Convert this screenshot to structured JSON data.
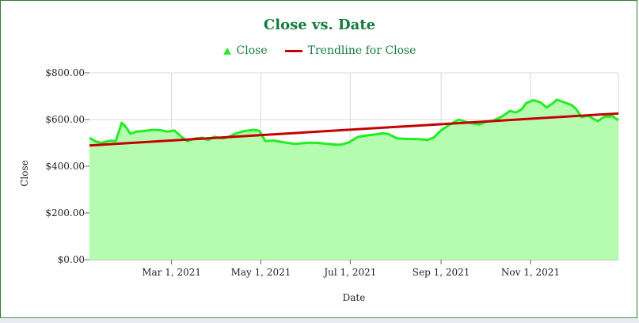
{
  "chart_data": {
    "type": "line",
    "title": "Close vs. Date",
    "xlabel": "Date",
    "ylabel": "Close",
    "legend": {
      "placement": "top-center",
      "entries": [
        "Close",
        "Trendline for Close"
      ]
    },
    "grid": true,
    "x_range": [
      "2021-01-04",
      "2021-12-31"
    ],
    "ylim": [
      0,
      800
    ],
    "y_ticks": [
      {
        "value": 0,
        "label": "$0.00"
      },
      {
        "value": 200,
        "label": "$200.00"
      },
      {
        "value": 400,
        "label": "$400.00"
      },
      {
        "value": 600,
        "label": "$600.00"
      },
      {
        "value": 800,
        "label": "$800.00"
      }
    ],
    "x_ticks": [
      {
        "value": "2021-03-01",
        "label": "Mar 1, 2021"
      },
      {
        "value": "2021-05-01",
        "label": "May 1, 2021"
      },
      {
        "value": "2021-07-01",
        "label": "Jul 1, 2021"
      },
      {
        "value": "2021-09-01",
        "label": "Sep 1, 2021"
      },
      {
        "value": "2021-11-01",
        "label": "Nov 1, 2021"
      }
    ],
    "series": [
      {
        "name": "Close",
        "type": "area",
        "color": "#22ee22",
        "fill": "#b5fcb0",
        "points": [
          [
            "2021-01-04",
            522
          ],
          [
            "2021-01-08",
            507
          ],
          [
            "2021-01-12",
            500
          ],
          [
            "2021-01-18",
            509
          ],
          [
            "2021-01-22",
            508
          ],
          [
            "2021-01-26",
            586
          ],
          [
            "2021-01-28",
            575
          ],
          [
            "2021-02-01",
            539
          ],
          [
            "2021-02-05",
            548
          ],
          [
            "2021-02-10",
            551
          ],
          [
            "2021-02-16",
            556
          ],
          [
            "2021-02-22",
            554
          ],
          [
            "2021-02-26",
            548
          ],
          [
            "2021-03-03",
            553
          ],
          [
            "2021-03-08",
            525
          ],
          [
            "2021-03-12",
            507
          ],
          [
            "2021-03-16",
            518
          ],
          [
            "2021-03-22",
            522
          ],
          [
            "2021-03-26",
            512
          ],
          [
            "2021-03-30",
            526
          ],
          [
            "2021-04-05",
            519
          ],
          [
            "2021-04-09",
            526
          ],
          [
            "2021-04-14",
            541
          ],
          [
            "2021-04-20",
            551
          ],
          [
            "2021-04-26",
            556
          ],
          [
            "2021-04-30",
            552
          ],
          [
            "2021-05-04",
            508
          ],
          [
            "2021-05-10",
            510
          ],
          [
            "2021-05-17",
            502
          ],
          [
            "2021-05-24",
            496
          ],
          [
            "2021-05-28",
            498
          ],
          [
            "2021-06-03",
            501
          ],
          [
            "2021-06-09",
            500
          ],
          [
            "2021-06-15",
            496
          ],
          [
            "2021-06-21",
            493
          ],
          [
            "2021-06-25",
            493
          ],
          [
            "2021-06-30",
            502
          ],
          [
            "2021-07-06",
            525
          ],
          [
            "2021-07-12",
            532
          ],
          [
            "2021-07-19",
            537
          ],
          [
            "2021-07-23",
            541
          ],
          [
            "2021-07-27",
            538
          ],
          [
            "2021-08-02",
            519
          ],
          [
            "2021-08-09",
            517
          ],
          [
            "2021-08-16",
            516
          ],
          [
            "2021-08-23",
            513
          ],
          [
            "2021-08-27",
            523
          ],
          [
            "2021-09-01",
            554
          ],
          [
            "2021-09-07",
            579
          ],
          [
            "2021-09-13",
            600
          ],
          [
            "2021-09-17",
            592
          ],
          [
            "2021-09-21",
            585
          ],
          [
            "2021-09-27",
            579
          ],
          [
            "2021-10-01",
            589
          ],
          [
            "2021-10-06",
            594
          ],
          [
            "2021-10-12",
            611
          ],
          [
            "2021-10-18",
            637
          ],
          [
            "2021-10-22",
            630
          ],
          [
            "2021-10-26",
            644
          ],
          [
            "2021-10-29",
            670
          ],
          [
            "2021-11-03",
            683
          ],
          [
            "2021-11-08",
            673
          ],
          [
            "2021-11-12",
            652
          ],
          [
            "2021-11-16",
            668
          ],
          [
            "2021-11-19",
            685
          ],
          [
            "2021-11-23",
            676
          ],
          [
            "2021-11-29",
            662
          ],
          [
            "2021-12-02",
            646
          ],
          [
            "2021-12-06",
            610
          ],
          [
            "2021-12-10",
            617
          ],
          [
            "2021-12-14",
            603
          ],
          [
            "2021-12-17",
            593
          ],
          [
            "2021-12-21",
            611
          ],
          [
            "2021-12-27",
            614
          ],
          [
            "2021-12-31",
            597
          ]
        ]
      },
      {
        "name": "Trendline for Close",
        "type": "line",
        "color": "#c40000",
        "points": [
          [
            "2021-01-04",
            489
          ],
          [
            "2021-12-31",
            626
          ]
        ]
      }
    ]
  }
}
